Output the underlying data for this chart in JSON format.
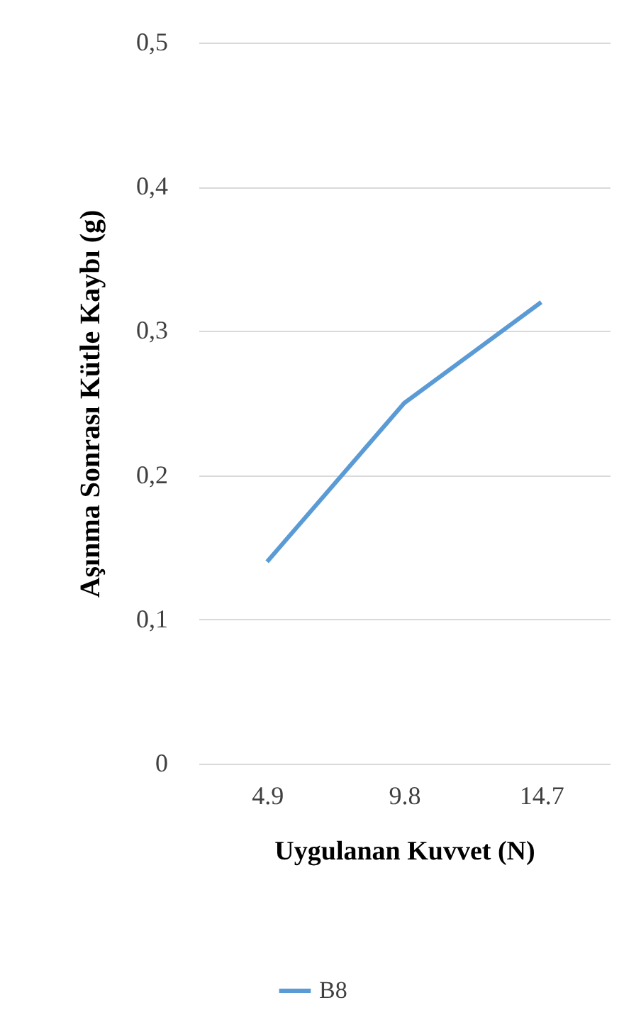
{
  "chart_data": {
    "type": "line",
    "xlabel": "Uygulanan Kuvvet (N)",
    "ylabel": "Aşınma Sonrası Kütle Kaybı (g)",
    "categories": [
      "4.9",
      "9.8",
      "14.7"
    ],
    "series": [
      {
        "name": "B8",
        "color": "#5b9bd5",
        "values": [
          0.14,
          0.25,
          0.32
        ]
      }
    ],
    "ylim": [
      0,
      0.5
    ],
    "yticks": [
      0,
      {
        "value": 0.1,
        "label": "0,1"
      },
      {
        "value": 0.2,
        "label": "0,2"
      },
      {
        "value": 0.3,
        "label": "0,3"
      },
      {
        "value": 0.4,
        "label": "0,4"
      },
      {
        "value": 0.5,
        "label": "0,5"
      }
    ],
    "grid": "y",
    "legend": "bottom",
    "marker": "none",
    "line_style": "solid"
  }
}
